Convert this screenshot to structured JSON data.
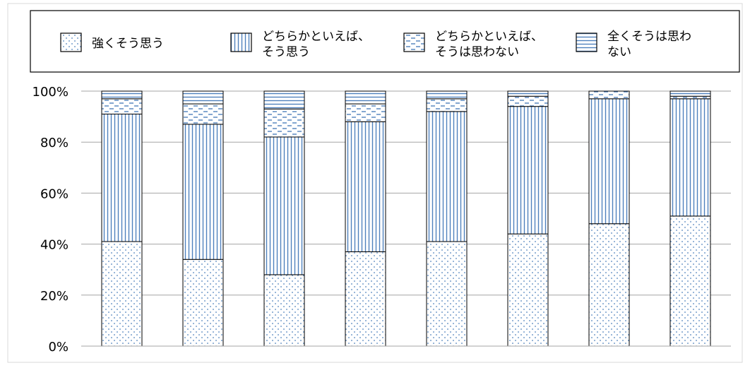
{
  "chart_data": {
    "type": "bar",
    "stacked": true,
    "categories": [
      "",
      "",
      "",
      "",
      "",
      "",
      "",
      ""
    ],
    "series": [
      {
        "name": "強くそう思う",
        "pattern": "dots",
        "values": [
          41,
          34,
          28,
          37,
          41,
          44,
          48,
          51
        ]
      },
      {
        "name": "どちらかといえば、そう思う",
        "pattern": "vertical-lines",
        "values": [
          50,
          53,
          54,
          51,
          51,
          50,
          49,
          46
        ]
      },
      {
        "name": "どちらかといえば、そうは思わない",
        "pattern": "dashes",
        "values": [
          6,
          8,
          11,
          7,
          5,
          4,
          3,
          1
        ]
      },
      {
        "name": "全くそうは思わない",
        "pattern": "horizontal-lines",
        "values": [
          3,
          5,
          7,
          5,
          3,
          2,
          0,
          2
        ]
      }
    ],
    "yticks": [
      "0%",
      "20%",
      "40%",
      "60%",
      "80%",
      "100%"
    ],
    "ylim": [
      0,
      100
    ],
    "grid": true,
    "legend": "top",
    "colors": {
      "pattern": "#4f81bd",
      "border": "#000000",
      "grid": "#a6a6a6"
    }
  }
}
